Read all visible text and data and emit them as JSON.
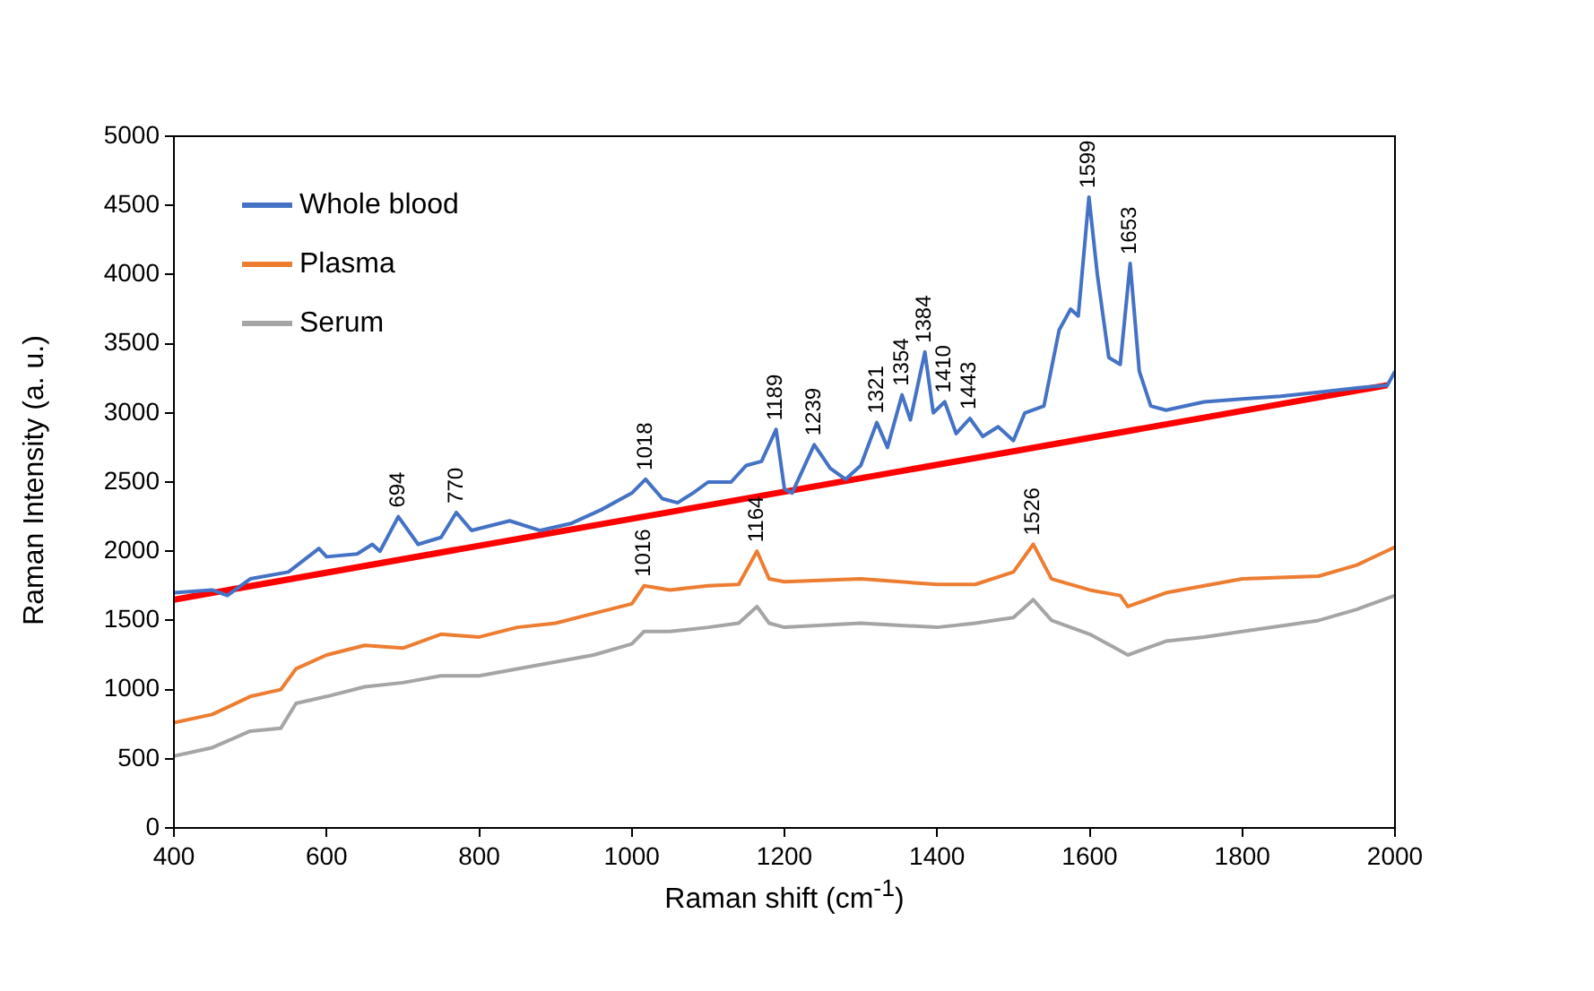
{
  "chart_data": {
    "type": "line",
    "xlabel": "Raman shift (cm$^{-1}$)",
    "ylabel": "Raman Intensity (a. u.)",
    "xlim": [
      400,
      2000
    ],
    "xticks": [
      400,
      600,
      800,
      1000,
      1200,
      1400,
      1600,
      1800,
      2000
    ],
    "ylim": [
      0,
      5000
    ],
    "yticks": [
      0,
      500,
      1000,
      1500,
      2000,
      2500,
      3000,
      3500,
      4000,
      4500,
      5000
    ],
    "grid": false,
    "legend": "top left",
    "marker": "none",
    "line_style": "solid",
    "series": [
      {
        "name": "Whole blood",
        "color": "#4472c4",
        "x": [
          400,
          450,
          470,
          500,
          550,
          590,
          600,
          640,
          660,
          670,
          694,
          720,
          750,
          770,
          790,
          840,
          880,
          920,
          960,
          1000,
          1018,
          1040,
          1060,
          1080,
          1100,
          1130,
          1150,
          1170,
          1189,
          1200,
          1210,
          1239,
          1260,
          1280,
          1300,
          1321,
          1335,
          1354,
          1365,
          1384,
          1395,
          1410,
          1425,
          1443,
          1460,
          1480,
          1500,
          1515,
          1540,
          1560,
          1575,
          1585,
          1599,
          1610,
          1625,
          1640,
          1653,
          1665,
          1680,
          1700,
          1750,
          1800,
          1850,
          1900,
          1950,
          1990,
          2000
        ],
        "values": [
          1700,
          1720,
          1680,
          1800,
          1850,
          2020,
          1960,
          1980,
          2050,
          2000,
          2250,
          2050,
          2100,
          2280,
          2150,
          2220,
          2150,
          2200,
          2300,
          2420,
          2520,
          2380,
          2350,
          2420,
          2500,
          2500,
          2620,
          2650,
          2880,
          2450,
          2420,
          2770,
          2600,
          2520,
          2620,
          2930,
          2750,
          3130,
          2950,
          3440,
          3000,
          3080,
          2850,
          2960,
          2830,
          2900,
          2800,
          3000,
          3050,
          3600,
          3750,
          3700,
          4560,
          4000,
          3400,
          3350,
          4080,
          3300,
          3050,
          3020,
          3080,
          3100,
          3120,
          3150,
          3180,
          3200,
          3300
        ]
      },
      {
        "name": "Plasma",
        "color": "#ed7d31",
        "x": [
          400,
          450,
          500,
          540,
          560,
          600,
          650,
          700,
          750,
          800,
          850,
          900,
          950,
          1000,
          1016,
          1050,
          1100,
          1140,
          1164,
          1180,
          1200,
          1300,
          1400,
          1450,
          1500,
          1526,
          1550,
          1600,
          1640,
          1650,
          1700,
          1750,
          1800,
          1900,
          1950,
          2000
        ],
        "values": [
          760,
          820,
          950,
          1000,
          1150,
          1250,
          1320,
          1300,
          1400,
          1380,
          1450,
          1480,
          1550,
          1620,
          1750,
          1720,
          1750,
          1760,
          2000,
          1800,
          1780,
          1800,
          1760,
          1760,
          1850,
          2050,
          1800,
          1720,
          1680,
          1600,
          1700,
          1750,
          1800,
          1820,
          1900,
          2030
        ]
      },
      {
        "name": "Serum",
        "color": "#a5a5a5",
        "x": [
          400,
          450,
          500,
          540,
          560,
          600,
          650,
          700,
          750,
          800,
          850,
          900,
          950,
          1000,
          1016,
          1050,
          1100,
          1140,
          1164,
          1180,
          1200,
          1300,
          1400,
          1450,
          1500,
          1526,
          1550,
          1600,
          1640,
          1650,
          1700,
          1750,
          1800,
          1900,
          1950,
          2000
        ],
        "values": [
          520,
          580,
          700,
          720,
          900,
          950,
          1020,
          1050,
          1100,
          1100,
          1150,
          1200,
          1250,
          1330,
          1420,
          1420,
          1450,
          1480,
          1600,
          1480,
          1450,
          1480,
          1450,
          1480,
          1520,
          1650,
          1500,
          1400,
          1280,
          1250,
          1350,
          1380,
          1420,
          1500,
          1580,
          1680
        ]
      },
      {
        "type": "line",
        "color": "#ff0000",
        "x": [
          400,
          1990
        ],
        "values": [
          1650,
          3200
        ]
      }
    ],
    "annotations": [
      {
        "text": "694",
        "x": 694,
        "y": 2250
      },
      {
        "text": "770",
        "x": 770,
        "y": 2280
      },
      {
        "text": "1018",
        "x": 1018,
        "y": 2520
      },
      {
        "text": "1189",
        "x": 1189,
        "y": 2880
      },
      {
        "text": "1239",
        "x": 1239,
        "y": 2770
      },
      {
        "text": "1321",
        "x": 1321,
        "y": 2930
      },
      {
        "text": "1354",
        "x": 1354,
        "y": 3130
      },
      {
        "text": "1384",
        "x": 1384,
        "y": 3440
      },
      {
        "text": "1410",
        "x": 1410,
        "y": 3080
      },
      {
        "text": "1443",
        "x": 1443,
        "y": 2960
      },
      {
        "text": "1599",
        "x": 1599,
        "y": 4560
      },
      {
        "text": "1653",
        "x": 1653,
        "y": 4080
      },
      {
        "text": "1016",
        "x": 1016,
        "y": 1750
      },
      {
        "text": "1164",
        "x": 1164,
        "y": 2000
      },
      {
        "text": "1526",
        "x": 1526,
        "y": 2050
      }
    ]
  }
}
